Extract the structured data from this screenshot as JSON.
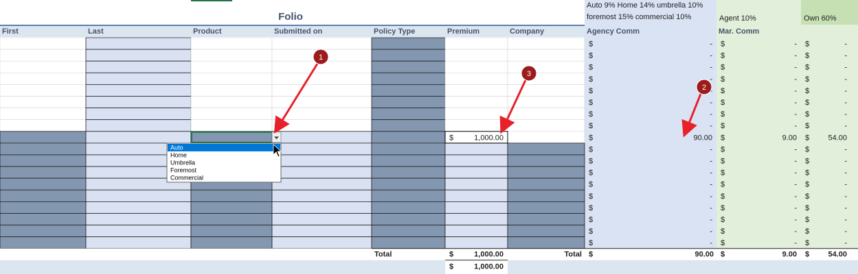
{
  "header": {
    "title": "Folio",
    "rates_line1": "Auto 9% Home 14% umbrella 10%",
    "rates_line2": "foremost 15% commercial 10%",
    "agent_rate": "Agent 10%",
    "own_rate": "Own 60%"
  },
  "columns": [
    "First",
    "Last",
    "Product",
    "Submitted on",
    "Policy Type",
    "Premium",
    "Company",
    "Agency Comm",
    "Mar. Comm"
  ],
  "currency": "$",
  "premium_entry": "1,000.00",
  "commission_rows": [
    [
      "-",
      "-",
      "-"
    ],
    [
      "-",
      "-",
      "-"
    ],
    [
      "-",
      "-",
      "-"
    ],
    [
      "-",
      "-",
      "-"
    ],
    [
      "-",
      "-",
      "-"
    ],
    [
      "-",
      "-",
      "-"
    ],
    [
      "-",
      "-",
      "-"
    ],
    [
      "-",
      "-",
      "-"
    ],
    [
      "90.00",
      "9.00",
      "54.00"
    ],
    [
      "-",
      "-",
      "-"
    ],
    [
      "-",
      "-",
      "-"
    ],
    [
      "-",
      "-",
      "-"
    ],
    [
      "-",
      "-",
      "-"
    ],
    [
      "-",
      "-",
      "-"
    ],
    [
      "-",
      "-",
      "-"
    ],
    [
      "-",
      "-",
      "-"
    ],
    [
      "-",
      "-",
      "-"
    ],
    [
      "-",
      "-",
      "-"
    ]
  ],
  "totals": {
    "label": "Total",
    "premium": "1,000.00",
    "agency": "90.00",
    "marketing": "9.00",
    "own": "54.00"
  },
  "grand_total_premium": "1,000.00",
  "dropdown": {
    "options": [
      "Auto",
      "Home",
      "Umbrella",
      "Foremost",
      "Commercial"
    ]
  },
  "callouts": [
    "1",
    "2",
    "3"
  ]
}
